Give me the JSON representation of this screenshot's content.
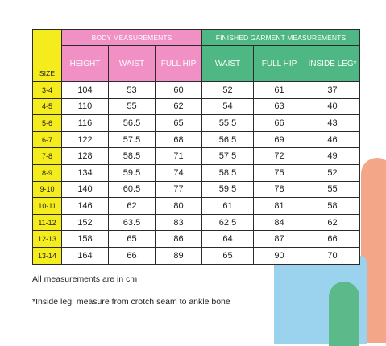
{
  "table": {
    "group_headers": {
      "body": "BODY MEASUREMENTS",
      "garment": "FINISHED GARMENT MEASUREMENTS"
    },
    "size_header": "SIZE",
    "columns": [
      "HEIGHT",
      "WAIST",
      "FULL HIP",
      "WAIST",
      "FULL HIP",
      "INSIDE LEG*"
    ],
    "rows": [
      {
        "size": "3-4",
        "values": [
          "104",
          "53",
          "60",
          "52",
          "61",
          "37"
        ]
      },
      {
        "size": "4-5",
        "values": [
          "110",
          "55",
          "62",
          "54",
          "63",
          "40"
        ]
      },
      {
        "size": "5-6",
        "values": [
          "116",
          "56.5",
          "65",
          "55.5",
          "66",
          "43"
        ]
      },
      {
        "size": "6-7",
        "values": [
          "122",
          "57.5",
          "68",
          "56.5",
          "69",
          "46"
        ]
      },
      {
        "size": "7-8",
        "values": [
          "128",
          "58.5",
          "71",
          "57.5",
          "72",
          "49"
        ]
      },
      {
        "size": "8-9",
        "values": [
          "134",
          "59.5",
          "74",
          "58.5",
          "75",
          "52"
        ]
      },
      {
        "size": "9-10",
        "values": [
          "140",
          "60.5",
          "77",
          "59.5",
          "78",
          "55"
        ]
      },
      {
        "size": "10-11",
        "values": [
          "146",
          "62",
          "80",
          "61",
          "81",
          "58"
        ]
      },
      {
        "size": "11-12",
        "values": [
          "152",
          "63.5",
          "83",
          "62.5",
          "84",
          "62"
        ]
      },
      {
        "size": "12-13",
        "values": [
          "158",
          "65",
          "86",
          "64",
          "87",
          "66"
        ]
      },
      {
        "size": "13-14",
        "values": [
          "164",
          "66",
          "89",
          "65",
          "90",
          "70"
        ]
      }
    ]
  },
  "notes": {
    "units": "All measurements are in cm",
    "inside_leg": "*Inside leg: measure from crotch seam to ankle bone"
  },
  "colors": {
    "size_yellow": "#f5ec1d",
    "body_pink": "#f090c4",
    "garment_green": "#4fb783",
    "deco_salmon": "#f4a689",
    "deco_blue": "#9bd3ef",
    "deco_green": "#5cb98a"
  }
}
